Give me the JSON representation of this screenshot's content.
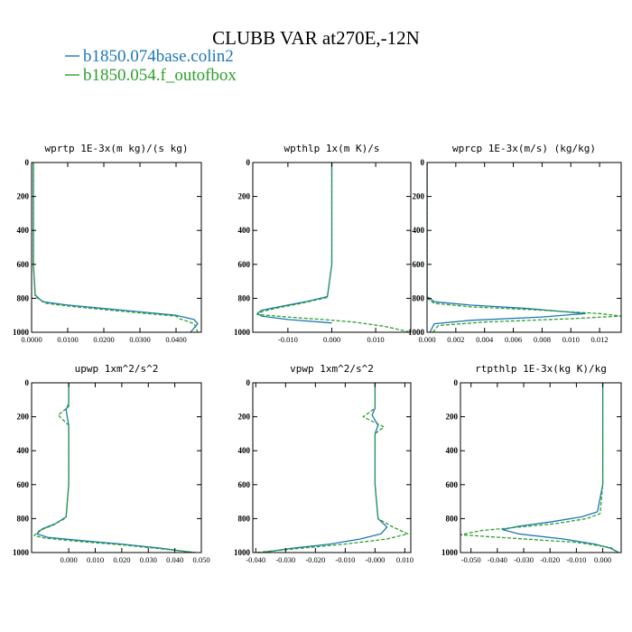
{
  "chart_data": {
    "type": "line",
    "title": "CLUBB VAR at270E,-12N",
    "legend": {
      "placement": "top-left",
      "entries": [
        {
          "name": "b1850.074base.colin2",
          "color": "#1f77b4",
          "style": "solid"
        },
        {
          "name": "b1850.054.f_outofbox",
          "color": "#2ca02c",
          "style": "dashed"
        }
      ]
    },
    "ylim": [
      1000,
      0
    ],
    "yticks": [
      0,
      200,
      400,
      600,
      800,
      1000
    ],
    "panels": [
      {
        "title": "wprtp  1E-3x(m kg)/(s kg)",
        "xlim": [
          0,
          0.047
        ],
        "xticks": [
          0,
          0.01,
          0.02,
          0.03,
          0.04
        ],
        "xticklabels": [
          "0.0000",
          "0.0100",
          "0.0200",
          "0.0300",
          "0.0400"
        ],
        "series": [
          {
            "name": "b1850.074base.colin2",
            "x": [
              0.0005,
              0.0005,
              0.0005,
              0.0005,
              0.001,
              0.003,
              0.01,
              0.02,
              0.03,
              0.04,
              0.045,
              0.046,
              0.044
            ],
            "y": [
              0,
              200,
              400,
              600,
              780,
              820,
              840,
              860,
              880,
              900,
              925,
              950,
              1000
            ]
          },
          {
            "name": "b1850.054.f_outofbox",
            "x": [
              0.0005,
              0.0005,
              0.0005,
              0.0005,
              0.001,
              0.004,
              0.012,
              0.022,
              0.032,
              0.04,
              0.041,
              0.045,
              0.046
            ],
            "y": [
              0,
              200,
              400,
              600,
              790,
              830,
              850,
              870,
              890,
              905,
              920,
              950,
              1000
            ]
          }
        ]
      },
      {
        "title": "wpthlp  1x(m K)/s",
        "xlim": [
          -0.018,
          0.018
        ],
        "xticks": [
          -0.01,
          0,
          0.01
        ],
        "xticklabels": [
          "-0.010",
          "0.000",
          "0.010"
        ],
        "series": [
          {
            "name": "b1850.074base.colin2",
            "x": [
              0,
              0,
              0,
              0,
              -0.001,
              -0.006,
              -0.012,
              -0.016,
              -0.017,
              -0.016,
              -0.01,
              0.0
            ],
            "y": [
              0,
              200,
              400,
              600,
              790,
              820,
              850,
              870,
              890,
              905,
              925,
              945
            ]
          },
          {
            "name": "b1850.054.f_outofbox",
            "x": [
              0,
              0,
              0,
              0,
              -0.001,
              -0.007,
              -0.013,
              -0.016,
              -0.017,
              -0.01,
              -0.002,
              0.005,
              0.012,
              0.018
            ],
            "y": [
              0,
              200,
              400,
              600,
              795,
              830,
              860,
              880,
              895,
              910,
              925,
              940,
              965,
              1000
            ]
          }
        ]
      },
      {
        "title": "wprcp  1E-3x(m/s) (kg/kg)",
        "xlim": [
          0,
          0.0135
        ],
        "xticks": [
          0,
          0.002,
          0.004,
          0.006,
          0.008,
          0.01,
          0.012
        ],
        "xticklabels": [
          "0.000",
          "0.002",
          "0.004",
          "0.006",
          "0.008",
          "0.010",
          "0.012"
        ],
        "series": [
          {
            "name": "b1850.074base.colin2",
            "x": [
              0,
              0,
              0,
              0,
              0,
              0.0005,
              0.003,
              0.007,
              0.011,
              0.008,
              0.003,
              0.0005,
              0.0002
            ],
            "y": [
              0,
              200,
              400,
              600,
              790,
              820,
              840,
              860,
              890,
              910,
              930,
              950,
              1000
            ]
          },
          {
            "name": "b1850.054.f_outofbox",
            "x": [
              0,
              0,
              0,
              0,
              0,
              0.0005,
              0.003,
              0.008,
              0.012,
              0.0135,
              0.01,
              0.004,
              0.0008,
              0.0004
            ],
            "y": [
              0,
              200,
              400,
              600,
              800,
              830,
              850,
              870,
              890,
              905,
              920,
              940,
              960,
              1000
            ]
          }
        ]
      },
      {
        "title": "upwp  1xm^2/s^2",
        "xlim": [
          -0.014,
          0.05
        ],
        "xticks": [
          0,
          0.01,
          0.02,
          0.03,
          0.04,
          0.05
        ],
        "xticklabels": [
          "0.000",
          "0.010",
          "0.020",
          "0.030",
          "0.040",
          "0.050"
        ],
        "series": [
          {
            "name": "b1850.074base.colin2",
            "x": [
              0,
              0,
              -0.001,
              0,
              0,
              0,
              -0.001,
              -0.005,
              -0.01,
              -0.012,
              -0.008,
              0.005,
              0.02,
              0.035,
              0.047
            ],
            "y": [
              0,
              120,
              160,
              250,
              400,
              600,
              790,
              830,
              860,
              890,
              910,
              930,
              950,
              975,
              1000
            ]
          },
          {
            "name": "b1850.054.f_outofbox",
            "x": [
              0,
              0,
              -0.004,
              0,
              0,
              0,
              -0.001,
              -0.006,
              -0.011,
              -0.013,
              -0.009,
              0.004,
              0.02,
              0.036,
              0.048
            ],
            "y": [
              0,
              140,
              190,
              250,
              400,
              600,
              795,
              840,
              870,
              900,
              915,
              935,
              955,
              980,
              1000
            ]
          }
        ]
      },
      {
        "title": "vpwp  1xm^2/s^2",
        "xlim": [
          -0.041,
          0.012
        ],
        "xticks": [
          -0.04,
          -0.03,
          -0.02,
          -0.01,
          0,
          0.01
        ],
        "xticklabels": [
          "-0.040",
          "-0.030",
          "-0.020",
          "-0.010",
          "-0.000",
          "0.010"
        ],
        "series": [
          {
            "name": "b1850.074base.colin2",
            "x": [
              0,
              0,
              -0.001,
              0.001,
              0,
              0,
              0,
              0.001,
              0.004,
              0.002,
              -0.005,
              -0.015,
              -0.028,
              -0.038
            ],
            "y": [
              0,
              150,
              190,
              250,
              300,
              400,
              600,
              800,
              850,
              890,
              920,
              950,
              975,
              1000
            ]
          },
          {
            "name": "b1850.054.f_outofbox",
            "x": [
              0,
              0,
              -0.004,
              0.003,
              0,
              0,
              0,
              0.001,
              0.006,
              0.011,
              0.004,
              -0.01,
              -0.025,
              -0.04
            ],
            "y": [
              0,
              150,
              200,
              260,
              300,
              400,
              600,
              800,
              850,
              890,
              920,
              950,
              975,
              1000
            ]
          }
        ]
      },
      {
        "title": "rtpthlp  1E-3x(kg K)/kg",
        "xlim": [
          -0.054,
          0.007
        ],
        "xticks": [
          -0.05,
          -0.04,
          -0.03,
          -0.02,
          -0.01,
          0
        ],
        "xticklabels": [
          "-0.050",
          "-0.040",
          "-0.030",
          "-0.020",
          "-0.010",
          "0.000"
        ],
        "series": [
          {
            "name": "b1850.074base.colin2",
            "x": [
              0,
              0,
              0,
              0,
              -0.002,
              -0.008,
              -0.02,
              -0.032,
              -0.038,
              -0.032,
              -0.015,
              -0.003,
              0.003,
              0.006
            ],
            "y": [
              0,
              200,
              400,
              600,
              760,
              790,
              820,
              845,
              865,
              890,
              920,
              950,
              975,
              1000
            ]
          },
          {
            "name": "b1850.054.f_outofbox",
            "x": [
              0,
              0,
              0,
              0,
              -0.001,
              -0.006,
              -0.018,
              -0.035,
              -0.046,
              -0.054,
              -0.035,
              -0.01,
              0.003,
              0.006
            ],
            "y": [
              0,
              200,
              400,
              600,
              770,
              800,
              830,
              855,
              870,
              895,
              915,
              940,
              970,
              1000
            ]
          }
        ]
      }
    ]
  }
}
